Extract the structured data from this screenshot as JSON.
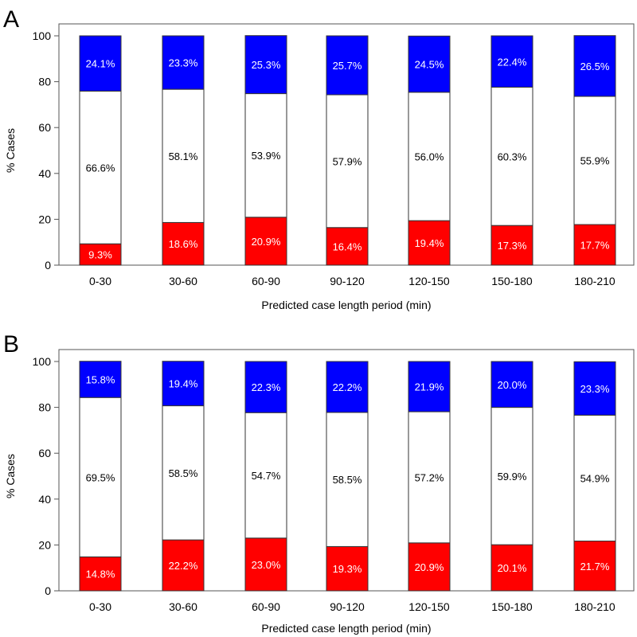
{
  "colors": {
    "bottom": "#ff0000",
    "middle": "#ffffff",
    "top": "#0000ff",
    "axis": "#555555"
  },
  "chart_data": [
    {
      "type": "bar",
      "stacked": true,
      "panel": "A",
      "categories": [
        "0-30",
        "30-60",
        "60-90",
        "90-120",
        "120-150",
        "150-180",
        "180-210"
      ],
      "series": [
        {
          "name": "bottom",
          "values": [
            9.3,
            18.6,
            20.9,
            16.4,
            19.4,
            17.3,
            17.7
          ],
          "labels": [
            "9.3%",
            "18.6%",
            "20.9%",
            "16.4%",
            "19.4%",
            "17.3%",
            "17.7%"
          ]
        },
        {
          "name": "middle",
          "values": [
            66.6,
            58.1,
            53.9,
            57.9,
            56.0,
            60.3,
            55.9
          ],
          "labels": [
            "66.6%",
            "58.1%",
            "53.9%",
            "57.9%",
            "56.0%",
            "60.3%",
            "55.9%"
          ]
        },
        {
          "name": "top",
          "values": [
            24.1,
            23.3,
            25.3,
            25.7,
            24.5,
            22.4,
            26.5
          ],
          "labels": [
            "24.1%",
            "23.3%",
            "25.3%",
            "25.7%",
            "24.5%",
            "22.4%",
            "26.5%"
          ]
        }
      ],
      "xlabel": "Predicted case length period (min)",
      "ylabel": "% Cases",
      "ylim": [
        0,
        100
      ],
      "yticks": [
        "0",
        "20",
        "40",
        "60",
        "80",
        "100"
      ],
      "grid": false
    },
    {
      "type": "bar",
      "stacked": true,
      "panel": "B",
      "categories": [
        "0-30",
        "30-60",
        "60-90",
        "90-120",
        "120-150",
        "150-180",
        "180-210"
      ],
      "series": [
        {
          "name": "bottom",
          "values": [
            14.8,
            22.2,
            23.0,
            19.3,
            20.9,
            20.1,
            21.7
          ],
          "labels": [
            "14.8%",
            "22.2%",
            "23.0%",
            "19.3%",
            "20.9%",
            "20.1%",
            "21.7%"
          ]
        },
        {
          "name": "middle",
          "values": [
            69.5,
            58.5,
            54.7,
            58.5,
            57.2,
            59.9,
            54.9
          ],
          "labels": [
            "69.5%",
            "58.5%",
            "54.7%",
            "58.5%",
            "57.2%",
            "59.9%",
            "54.9%"
          ]
        },
        {
          "name": "top",
          "values": [
            15.8,
            19.4,
            22.3,
            22.2,
            21.9,
            20.0,
            23.3
          ],
          "labels": [
            "15.8%",
            "19.4%",
            "22.3%",
            "22.2%",
            "21.9%",
            "20.0%",
            "23.3%"
          ]
        }
      ],
      "xlabel": "Predicted case length period (min)",
      "ylabel": "% Cases",
      "ylim": [
        0,
        100
      ],
      "yticks": [
        "0",
        "20",
        "40",
        "60",
        "80",
        "100"
      ],
      "grid": false
    }
  ]
}
